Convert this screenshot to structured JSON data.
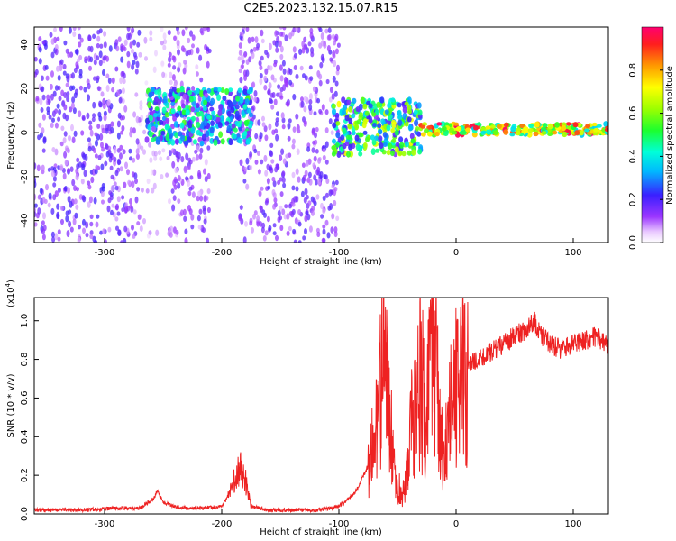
{
  "title": "C2E5.2023.132.15.07.R15",
  "chart_data": [
    {
      "type": "heatmap",
      "xlabel": "Height of straight line (km)",
      "ylabel": "Frequency (Hz)",
      "xlim": [
        -360,
        130
      ],
      "ylim": [
        -50,
        48
      ],
      "xticks": [
        -300,
        -200,
        -100,
        0,
        100
      ],
      "yticks": [
        -40,
        -20,
        0,
        20,
        40
      ],
      "colorbar": {
        "label": "Normalized spectral amplitude",
        "ticks": [
          "0.0",
          "0.2",
          "0.4",
          "0.6",
          "0.8"
        ],
        "tick_values": [
          0.0,
          0.2,
          0.4,
          0.6,
          0.8
        ],
        "range": [
          0,
          1
        ]
      },
      "regions": [
        {
          "x": [
            -360,
            -270
          ],
          "f": [
            -50,
            48
          ],
          "amp": 0.15,
          "kind": "noise"
        },
        {
          "x": [
            -270,
            -245
          ],
          "f": [
            -50,
            48
          ],
          "amp": 0.08,
          "kind": "noise-sparse"
        },
        {
          "x": [
            -245,
            -210
          ],
          "f": [
            -50,
            48
          ],
          "amp": 0.12,
          "kind": "noise"
        },
        {
          "x": [
            -185,
            -100
          ],
          "f": [
            -50,
            48
          ],
          "amp": 0.14,
          "kind": "noise"
        },
        {
          "x": [
            -265,
            -175
          ],
          "f": [
            -5,
            20
          ],
          "amp": 0.35,
          "kind": "band"
        },
        {
          "x": [
            -105,
            -30
          ],
          "f": [
            -10,
            15
          ],
          "amp": 0.45,
          "kind": "band"
        },
        {
          "x": [
            -30,
            130
          ],
          "f": [
            -1,
            4
          ],
          "amp": 0.95,
          "kind": "line"
        }
      ]
    },
    {
      "type": "line",
      "xlabel": "Height of straight line (km)",
      "ylabel": "SNR (10 * v/v)",
      "y_multiplier": "(x10",
      "y_multiplier_exp": "4",
      "xlim": [
        -360,
        130
      ],
      "ylim": [
        0,
        1.12
      ],
      "xticks": [
        -300,
        -200,
        -100,
        0,
        100
      ],
      "yticks": [
        "0.0",
        "0.2",
        "0.4",
        "0.6",
        "0.8",
        "1.0"
      ],
      "ytick_values": [
        0.0,
        0.2,
        0.4,
        0.6,
        0.8,
        1.0
      ],
      "series": [
        {
          "color": "#ee2222",
          "x": [
            -360,
            -320,
            -290,
            -270,
            -258,
            -255,
            -250,
            -240,
            -230,
            -215,
            -200,
            -192,
            -188,
            -184,
            -180,
            -175,
            -160,
            -140,
            -120,
            -105,
            -95,
            -85,
            -75,
            -68,
            -62,
            -58,
            -54,
            -50,
            -46,
            -42,
            -38,
            -34,
            -30,
            -26,
            -22,
            -18,
            -14,
            -10,
            -6,
            -2,
            2,
            6,
            10,
            20,
            30,
            40,
            50,
            60,
            66,
            72,
            80,
            90,
            100,
            110,
            120,
            130
          ],
          "values": [
            0.02,
            0.02,
            0.03,
            0.03,
            0.08,
            0.12,
            0.06,
            0.04,
            0.03,
            0.03,
            0.04,
            0.12,
            0.2,
            0.25,
            0.18,
            0.04,
            0.02,
            0.02,
            0.02,
            0.03,
            0.06,
            0.12,
            0.25,
            0.45,
            0.9,
            0.6,
            0.3,
            0.15,
            0.1,
            0.2,
            0.45,
            0.55,
            0.7,
            0.5,
            0.75,
            0.85,
            0.4,
            0.3,
            0.5,
            0.6,
            0.7,
            0.75,
            0.78,
            0.8,
            0.84,
            0.88,
            0.92,
            0.96,
            1.0,
            0.93,
            0.88,
            0.85,
            0.88,
            0.9,
            0.92,
            0.86
          ]
        }
      ]
    }
  ]
}
